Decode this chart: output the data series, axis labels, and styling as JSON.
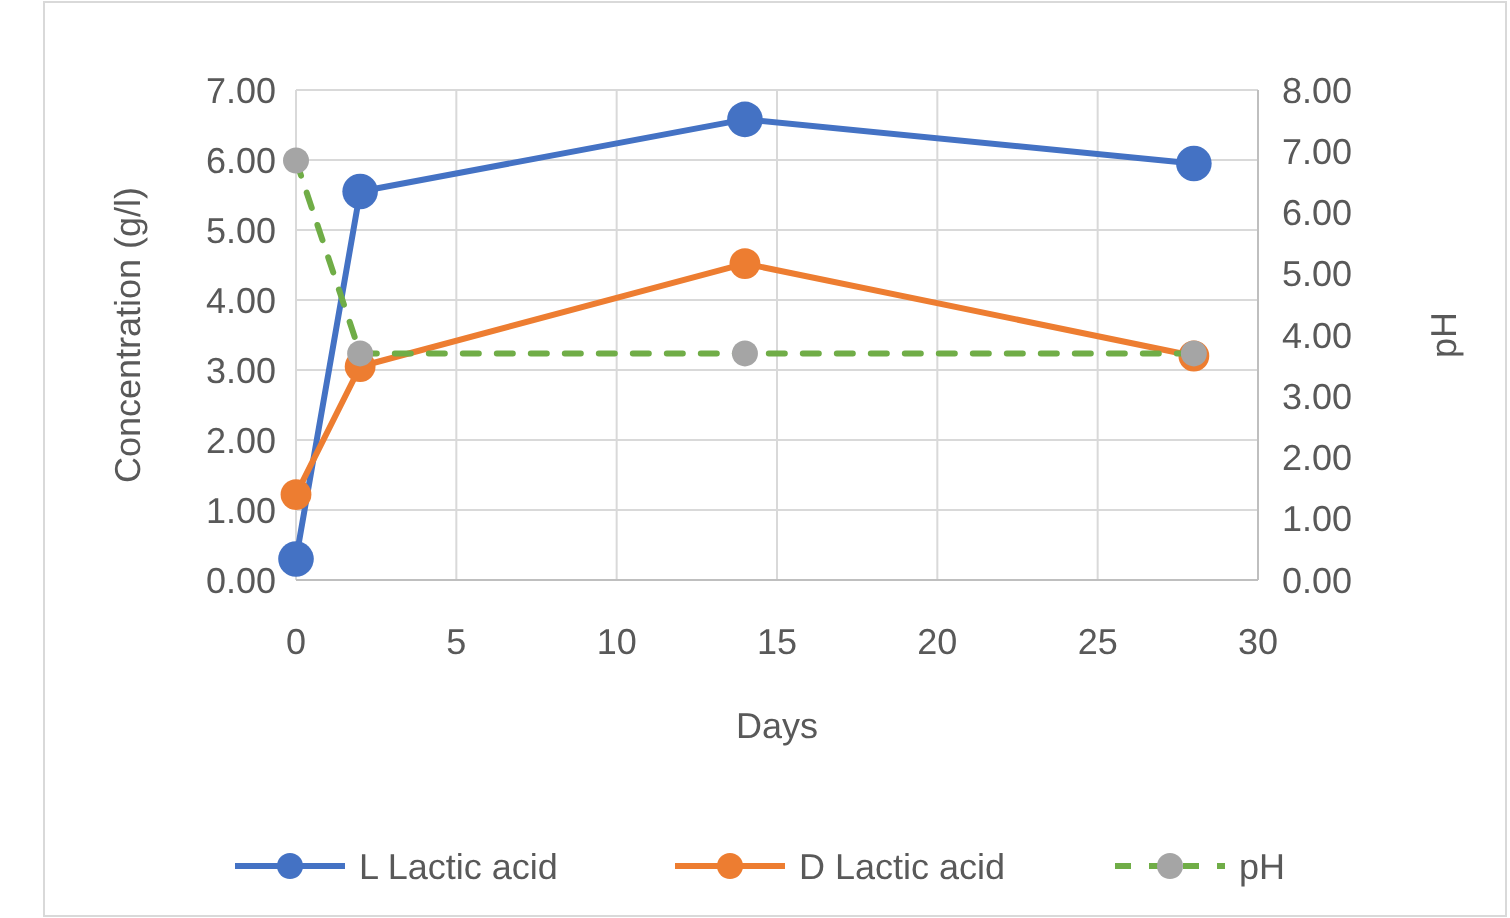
{
  "chart_data": {
    "type": "line",
    "xlabel": "Days",
    "ylabel": "Concentration (g/l)",
    "y2label": "pH",
    "x": [
      0,
      2,
      14,
      28
    ],
    "xlim": [
      0,
      30
    ],
    "xticks": [
      0,
      5,
      10,
      15,
      20,
      25,
      30
    ],
    "ylim": [
      0,
      7
    ],
    "yticks": [
      {
        "value": 0,
        "label": "0.00"
      },
      {
        "value": 1,
        "label": "1.00"
      },
      {
        "value": 2,
        "label": "2.00"
      },
      {
        "value": 3,
        "label": "3.00"
      },
      {
        "value": 4,
        "label": "4.00"
      },
      {
        "value": 5,
        "label": "5.00"
      },
      {
        "value": 6,
        "label": "6.00"
      },
      {
        "value": 7,
        "label": "7.00"
      }
    ],
    "y2lim": [
      0,
      8
    ],
    "y2ticks": [
      {
        "value": 0,
        "label": "0.00"
      },
      {
        "value": 1,
        "label": "1.00"
      },
      {
        "value": 2,
        "label": "2.00"
      },
      {
        "value": 3,
        "label": "3.00"
      },
      {
        "value": 4,
        "label": "4.00"
      },
      {
        "value": 5,
        "label": "5.00"
      },
      {
        "value": 6,
        "label": "6.00"
      },
      {
        "value": 7,
        "label": "7.00"
      },
      {
        "value": 8,
        "label": "8.00"
      }
    ],
    "grid": true,
    "legend": "bottom",
    "marker": "circle",
    "series": [
      {
        "name": "L Lactic acid",
        "color": "#4472c4",
        "values": [
          0.3,
          5.55,
          6.58,
          5.95
        ]
      },
      {
        "name": "D Lactic acid",
        "color": "#ed7d31",
        "values": [
          1.22,
          3.05,
          4.52,
          3.2
        ]
      },
      {
        "name": "pH",
        "color": "#70ad47",
        "colors": [
          "#a5a5a5",
          "#a5a5a5",
          "#a5a5a5",
          "#a5a5a5"
        ],
        "axis": "y2",
        "line_style": "dashed",
        "values": [
          6.85,
          3.7,
          3.7,
          3.7
        ]
      }
    ]
  }
}
